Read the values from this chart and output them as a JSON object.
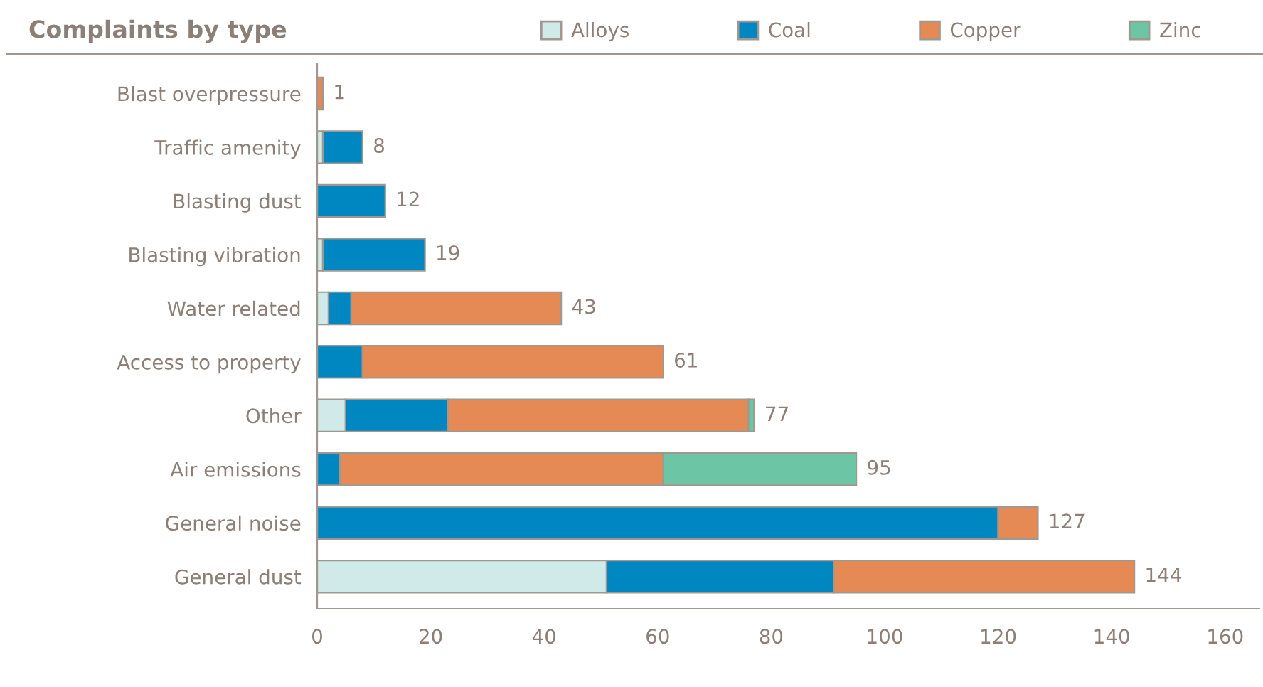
{
  "chart_data": {
    "type": "bar",
    "orientation": "horizontal",
    "stacked": true,
    "title": "Complaints by type",
    "categories": [
      "Blast overpressure",
      "Traffic amenity",
      "Blasting dust",
      "Blasting vibration",
      "Water related",
      "Access to property",
      "Other",
      "Air emissions",
      "General noise",
      "General dust"
    ],
    "series": [
      {
        "name": "Alloys",
        "color": "#d0eaea",
        "values": [
          null,
          1,
          null,
          1,
          2,
          null,
          5,
          null,
          null,
          51
        ]
      },
      {
        "name": "Coal",
        "color": "#0087c1",
        "values": [
          null,
          7,
          12,
          18,
          4,
          8,
          18,
          4,
          120,
          40
        ]
      },
      {
        "name": "Copper",
        "color": "#e68a55",
        "values": [
          1,
          null,
          null,
          null,
          37,
          53,
          53,
          57,
          7,
          53
        ]
      },
      {
        "name": "Zinc",
        "color": "#6cc5a5",
        "values": [
          null,
          null,
          null,
          null,
          null,
          null,
          1,
          34,
          null,
          null
        ]
      }
    ],
    "totals": [
      "1",
      "8",
      "12",
      "19",
      "43",
      "61",
      "77",
      "95",
      "127",
      "144"
    ],
    "xlim": [
      0,
      166
    ],
    "xticks": [
      0,
      20,
      40,
      60,
      80,
      100,
      120,
      140,
      160
    ],
    "grid": false,
    "legend": "top"
  }
}
